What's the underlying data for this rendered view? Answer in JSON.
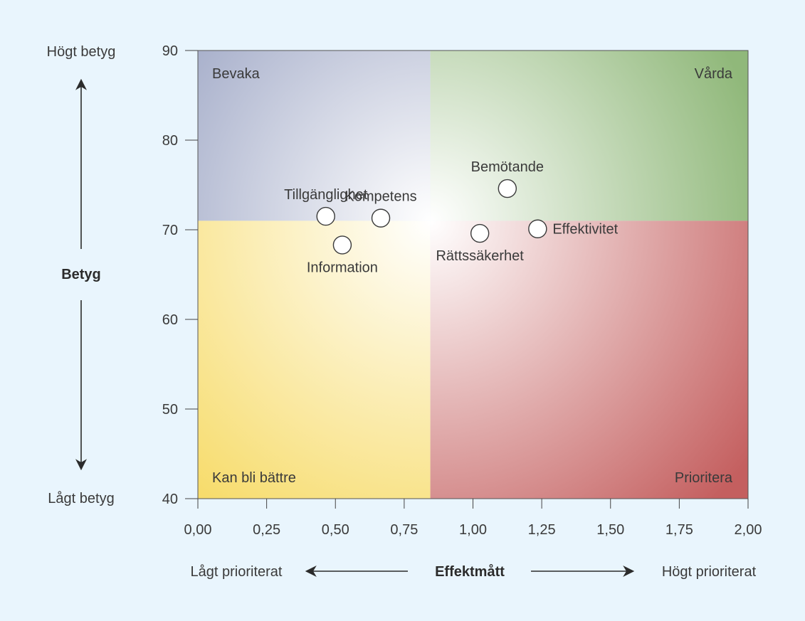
{
  "chart_data": {
    "type": "scatter",
    "title": "",
    "xlabel": "Effektmått",
    "ylabel": "Betyg",
    "xlim": [
      0,
      2
    ],
    "ylim": [
      40,
      90
    ],
    "x_ticks": [
      "0,00",
      "0,25",
      "0,50",
      "0,75",
      "1,00",
      "1,25",
      "1,50",
      "1,75",
      "2,00"
    ],
    "y_ticks": [
      "40",
      "50",
      "60",
      "70",
      "80",
      "90"
    ],
    "x_split": 0.845,
    "y_split": 71,
    "x_low_label": "Lågt prioriterat",
    "x_high_label": "Högt prioriterat",
    "y_high_label": "Högt betyg",
    "y_low_label": "Lågt betyg",
    "quadrants": {
      "top_left": "Bevaka",
      "top_right": "Vårda",
      "bottom_left": "Kan bli bättre",
      "bottom_right": "Prioritera"
    },
    "quadrant_colors": {
      "top_left": "#a6aeca",
      "top_right": "#90b87a",
      "bottom_left": "#f7dc6c",
      "bottom_right": "#c45f5f"
    },
    "points": [
      {
        "label": "Tillgänglighet",
        "x": 0.465,
        "y": 71.5,
        "label_pos": "above"
      },
      {
        "label": "Kompetens",
        "x": 0.665,
        "y": 71.3,
        "label_pos": "above"
      },
      {
        "label": "Information",
        "x": 0.525,
        "y": 68.3,
        "label_pos": "below"
      },
      {
        "label": "Bemötande",
        "x": 1.125,
        "y": 74.6,
        "label_pos": "above"
      },
      {
        "label": "Rättssäkerhet",
        "x": 1.025,
        "y": 69.6,
        "label_pos": "below"
      },
      {
        "label": "Effektivitet",
        "x": 1.235,
        "y": 70.1,
        "label_pos": "right"
      }
    ]
  }
}
